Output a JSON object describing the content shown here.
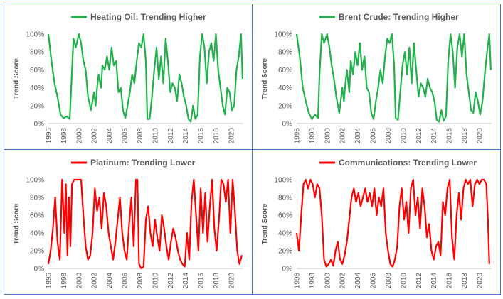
{
  "chart_data": [
    {
      "type": "line",
      "legend": "Heating Oil: Trending Higher",
      "ylabel": "Trend Score",
      "color": "#22b14c",
      "ylim": [
        0,
        100
      ],
      "yticks": [
        "0%",
        "20%",
        "40%",
        "60%",
        "80%",
        "100%"
      ],
      "xlim": [
        1996,
        2021.6
      ],
      "xticks": [
        "1996",
        "1998",
        "2000",
        "2002",
        "2004",
        "2006",
        "2008",
        "2010",
        "2012",
        "2014",
        "2016",
        "2018",
        "2020"
      ],
      "series": [
        {
          "x": [
            1996,
            1996.4,
            1996.8,
            1997.2,
            1997.6,
            1998.0,
            1998.4,
            1998.8,
            1999.0,
            1999.3,
            1999.6,
            2000.0,
            2000.3,
            2000.6,
            2000.9,
            2001.2,
            2001.6,
            2002.0,
            2002.2,
            2002.4,
            2002.6,
            2002.9,
            2003.1,
            2003.4,
            2003.7,
            2004.0,
            2004.3,
            2004.6,
            2004.9,
            2005.2,
            2005.5,
            2005.8,
            2006.1,
            2006.4,
            2006.7,
            2007.0,
            2007.3,
            2007.6,
            2007.9,
            2008.2,
            2008.5,
            2008.8,
            2009.0,
            2009.3,
            2009.6,
            2009.9,
            2010.2,
            2010.5,
            2010.8,
            2011.1,
            2011.4,
            2011.7,
            2012.0,
            2012.3,
            2012.6,
            2012.9,
            2013.2,
            2013.5,
            2013.8,
            2014.1,
            2014.4,
            2014.7,
            2015.0,
            2015.3,
            2015.6,
            2015.9,
            2016.2,
            2016.5,
            2016.8,
            2017.1,
            2017.4,
            2017.7,
            2018.0,
            2018.3,
            2018.6,
            2018.9,
            2019.2,
            2019.5,
            2019.8,
            2020.1,
            2020.4,
            2020.7,
            2021.0,
            2021.3,
            2021.5
          ],
          "y": [
            100,
            70,
            45,
            30,
            10,
            6,
            8,
            5,
            40,
            95,
            85,
            100,
            90,
            70,
            60,
            30,
            15,
            35,
            20,
            40,
            55,
            40,
            65,
            60,
            75,
            60,
            85,
            65,
            70,
            35,
            40,
            15,
            6,
            20,
            35,
            55,
            45,
            70,
            90,
            85,
            100,
            70,
            5,
            5,
            30,
            60,
            85,
            50,
            75,
            45,
            95,
            70,
            35,
            45,
            40,
            25,
            55,
            45,
            30,
            20,
            5,
            2,
            20,
            5,
            10,
            75,
            100,
            85,
            45,
            80,
            90,
            70,
            100,
            60,
            40,
            20,
            10,
            40,
            35,
            15,
            20,
            60,
            75,
            100,
            50
          ]
        }
      ]
    },
    {
      "type": "line",
      "legend": "Brent Crude: Trending Higher",
      "ylabel": "Trend Score",
      "color": "#22b14c",
      "ylim": [
        0,
        100
      ],
      "yticks": [
        "0%",
        "20%",
        "40%",
        "60%",
        "80%",
        "100%"
      ],
      "xlim": [
        1996,
        2021.6
      ],
      "xticks": [
        "1996",
        "1998",
        "2000",
        "2002",
        "2004",
        "2006",
        "2008",
        "2010",
        "2012",
        "2014",
        "2016",
        "2018",
        "2020"
      ],
      "series": [
        {
          "x": [
            1996,
            1996.4,
            1996.8,
            1997.2,
            1997.6,
            1998.0,
            1998.4,
            1998.8,
            1999.0,
            1999.3,
            1999.6,
            2000.0,
            2000.3,
            2000.6,
            2000.9,
            2001.2,
            2001.6,
            2002.0,
            2002.2,
            2002.4,
            2002.6,
            2002.9,
            2003.1,
            2003.4,
            2003.7,
            2004.0,
            2004.3,
            2004.6,
            2004.9,
            2005.2,
            2005.5,
            2005.8,
            2006.1,
            2006.4,
            2006.7,
            2007.0,
            2007.3,
            2007.6,
            2007.9,
            2008.2,
            2008.5,
            2008.8,
            2009.0,
            2009.3,
            2009.6,
            2009.9,
            2010.2,
            2010.5,
            2010.8,
            2011.1,
            2011.4,
            2011.7,
            2012.0,
            2012.3,
            2012.6,
            2012.9,
            2013.2,
            2013.5,
            2013.8,
            2014.1,
            2014.4,
            2014.7,
            2015.0,
            2015.3,
            2015.6,
            2015.9,
            2016.2,
            2016.5,
            2016.8,
            2017.1,
            2017.4,
            2017.7,
            2018.0,
            2018.3,
            2018.6,
            2018.9,
            2019.2,
            2019.5,
            2019.8,
            2020.1,
            2020.4,
            2020.7,
            2021.0,
            2021.3,
            2021.5
          ],
          "y": [
            100,
            75,
            40,
            25,
            12,
            5,
            10,
            6,
            55,
            100,
            90,
            100,
            85,
            65,
            50,
            30,
            12,
            40,
            25,
            45,
            60,
            35,
            70,
            55,
            80,
            65,
            90,
            60,
            75,
            40,
            35,
            12,
            5,
            25,
            40,
            60,
            45,
            75,
            95,
            90,
            100,
            65,
            6,
            4,
            35,
            65,
            80,
            55,
            85,
            45,
            90,
            60,
            30,
            45,
            40,
            30,
            50,
            40,
            35,
            25,
            4,
            2,
            15,
            3,
            8,
            70,
            100,
            80,
            40,
            85,
            100,
            75,
            100,
            55,
            35,
            15,
            12,
            35,
            25,
            10,
            25,
            55,
            80,
            100,
            60
          ]
        }
      ]
    },
    {
      "type": "line",
      "legend": "Platinum: Trending Lower",
      "ylabel": "Trend Score",
      "color": "#ff0000",
      "ylim": [
        0,
        100
      ],
      "yticks": [
        "0%",
        "20%",
        "40%",
        "60%",
        "80%",
        "100%"
      ],
      "xlim": [
        1996,
        2021.6
      ],
      "xticks": [
        "1996",
        "1998",
        "2000",
        "2002",
        "2004",
        "2006",
        "2008",
        "2010",
        "2012",
        "2014",
        "2016",
        "2018",
        "2020"
      ],
      "series": [
        {
          "x": [
            1996,
            1996.3,
            1996.6,
            1996.9,
            1997.2,
            1997.5,
            1997.8,
            1998.1,
            1998.3,
            1998.5,
            1998.7,
            1998.9,
            1999.1,
            1999.4,
            1999.7,
            2000.0,
            2000.3,
            2000.6,
            2000.9,
            2001.2,
            2001.5,
            2001.8,
            2002.1,
            2002.4,
            2002.7,
            2003.0,
            2003.3,
            2003.6,
            2003.9,
            2004.2,
            2004.5,
            2004.8,
            2005.1,
            2005.4,
            2005.7,
            2006.0,
            2006.3,
            2006.6,
            2006.9,
            2007.2,
            2007.5,
            2007.7,
            2007.9,
            2008.2,
            2008.5,
            2008.8,
            2009.1,
            2009.4,
            2009.7,
            2010.0,
            2010.3,
            2010.6,
            2010.9,
            2011.2,
            2011.5,
            2011.8,
            2012.1,
            2012.4,
            2012.7,
            2013.0,
            2013.3,
            2013.6,
            2013.9,
            2014.2,
            2014.5,
            2014.8,
            2015.1,
            2015.4,
            2015.7,
            2016.0,
            2016.3,
            2016.6,
            2016.9,
            2017.2,
            2017.5,
            2017.8,
            2018.1,
            2018.4,
            2018.7,
            2019.0,
            2019.3,
            2019.6,
            2019.9,
            2020.2,
            2020.5,
            2020.8,
            2021.1,
            2021.4
          ],
          "y": [
            5,
            20,
            45,
            80,
            30,
            10,
            100,
            40,
            95,
            15,
            80,
            25,
            95,
            100,
            100,
            100,
            100,
            60,
            25,
            10,
            15,
            40,
            90,
            65,
            80,
            45,
            85,
            70,
            40,
            25,
            10,
            30,
            55,
            80,
            40,
            20,
            10,
            50,
            80,
            25,
            100,
            100,
            5,
            0,
            2,
            55,
            70,
            40,
            25,
            55,
            35,
            20,
            60,
            45,
            25,
            10,
            30,
            45,
            35,
            20,
            10,
            5,
            2,
            40,
            10,
            75,
            100,
            60,
            20,
            90,
            40,
            85,
            30,
            70,
            100,
            45,
            20,
            55,
            100,
            95,
            75,
            100,
            40,
            100,
            65,
            20,
            5,
            15
          ]
        }
      ]
    },
    {
      "type": "line",
      "legend": "Communications: Trending Lower",
      "ylabel": "Trend Score",
      "color": "#ff0000",
      "ylim": [
        0,
        100
      ],
      "yticks": [
        "0%",
        "20%",
        "40%",
        "60%",
        "80%",
        "100%"
      ],
      "xlim": [
        1996,
        2021.6
      ],
      "xticks": [
        "1996",
        "1998",
        "2000",
        "2002",
        "2004",
        "2006",
        "2008",
        "2010",
        "2012",
        "2014",
        "2016",
        "2018",
        "2020"
      ],
      "series": [
        {
          "x": [
            1996,
            1996.3,
            1996.6,
            1996.9,
            1997.2,
            1997.5,
            1997.8,
            1998.1,
            1998.4,
            1998.7,
            1999.0,
            1999.3,
            1999.6,
            1999.9,
            2000.2,
            2000.5,
            2000.8,
            2001.1,
            2001.4,
            2001.7,
            2002.0,
            2002.3,
            2002.6,
            2002.9,
            2003.2,
            2003.5,
            2003.8,
            2004.1,
            2004.4,
            2004.7,
            2005.0,
            2005.3,
            2005.6,
            2005.9,
            2006.2,
            2006.5,
            2006.8,
            2007.1,
            2007.4,
            2007.7,
            2008.0,
            2008.3,
            2008.6,
            2008.9,
            2009.2,
            2009.5,
            2009.8,
            2010.1,
            2010.4,
            2010.7,
            2011.0,
            2011.3,
            2011.6,
            2011.9,
            2012.2,
            2012.5,
            2012.8,
            2013.1,
            2013.4,
            2013.7,
            2014.0,
            2014.3,
            2014.6,
            2014.9,
            2015.2,
            2015.5,
            2015.8,
            2016.1,
            2016.4,
            2016.7,
            2017.0,
            2017.3,
            2017.6,
            2017.9,
            2018.2,
            2018.5,
            2018.8,
            2019.1,
            2019.4,
            2019.7,
            2020.0,
            2020.3,
            2020.6,
            2020.9,
            2021.1,
            2021.3
          ],
          "y": [
            40,
            20,
            60,
            95,
            100,
            90,
            100,
            95,
            80,
            95,
            90,
            60,
            10,
            2,
            5,
            10,
            3,
            20,
            30,
            10,
            5,
            15,
            30,
            55,
            80,
            90,
            75,
            85,
            70,
            80,
            90,
            75,
            85,
            70,
            90,
            60,
            80,
            70,
            90,
            40,
            20,
            5,
            2,
            10,
            25,
            70,
            90,
            55,
            75,
            40,
            90,
            100,
            60,
            80,
            45,
            90,
            70,
            35,
            50,
            20,
            10,
            25,
            30,
            15,
            75,
            60,
            90,
            100,
            35,
            10,
            60,
            85,
            55,
            90,
            100,
            95,
            100,
            70,
            95,
            100,
            95,
            100,
            100,
            95,
            60,
            5
          ]
        }
      ]
    }
  ]
}
